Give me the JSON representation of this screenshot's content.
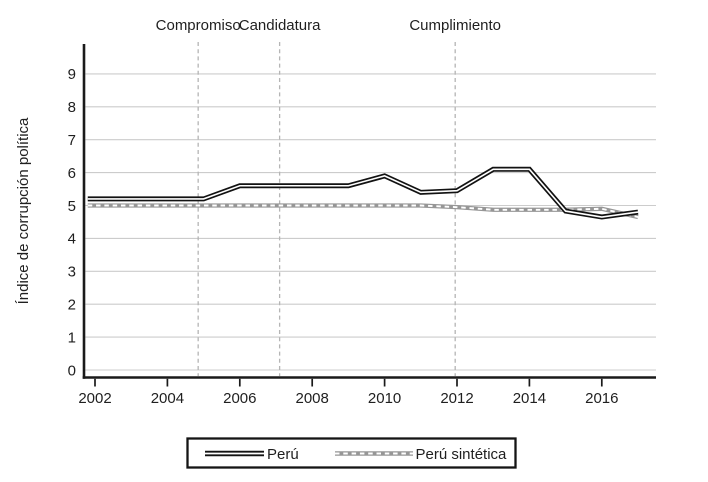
{
  "figure": {
    "background": "#ffffff",
    "text_color": "#1f1f1f"
  },
  "chart_data": {
    "type": "line",
    "title": "",
    "xlabel": "",
    "ylabel": "Índice de corrupción política",
    "x": [
      2002,
      2003,
      2004,
      2005,
      2006,
      2007,
      2008,
      2009,
      2010,
      2011,
      2012,
      2013,
      2014,
      2015,
      2016,
      2017
    ],
    "series": [
      {
        "name": "Perú",
        "style": "solid-double-black",
        "color": "#121212",
        "values": [
          5.2,
          5.2,
          5.2,
          5.2,
          5.6,
          5.6,
          5.6,
          5.6,
          5.9,
          5.4,
          5.45,
          6.1,
          6.1,
          4.83,
          4.65,
          4.8
        ]
      },
      {
        "name": "Perú sintética",
        "style": "gray-dashed",
        "color": "#969696",
        "values": [
          5.0,
          5.0,
          5.0,
          5.0,
          5.0,
          5.0,
          5.0,
          5.0,
          5.0,
          5.0,
          4.95,
          4.87,
          4.87,
          4.87,
          4.9,
          4.65
        ]
      }
    ],
    "x_ticks": [
      2002,
      2004,
      2006,
      2008,
      2010,
      2012,
      2014,
      2016
    ],
    "y_ticks": [
      0,
      1,
      2,
      3,
      4,
      5,
      6,
      7,
      8,
      9
    ],
    "xlim": [
      2001.8,
      2017.5
    ],
    "ylim": [
      0,
      9.9
    ],
    "grid": "horizontal",
    "legend_position": "bottom-center",
    "event_lines": [
      {
        "label": "Compromiso",
        "x": 2004.85
      },
      {
        "label": "Candidatura",
        "x": 2007.1
      },
      {
        "label": "Cumplimiento",
        "x": 2011.95
      }
    ],
    "colors": {
      "axis": "#1a1a1a",
      "gridline": "#cccccc",
      "event_line": "#b5b5b5",
      "series_peru": "#121212",
      "series_sintetica": "#969696",
      "legend_border": "#141414"
    }
  }
}
